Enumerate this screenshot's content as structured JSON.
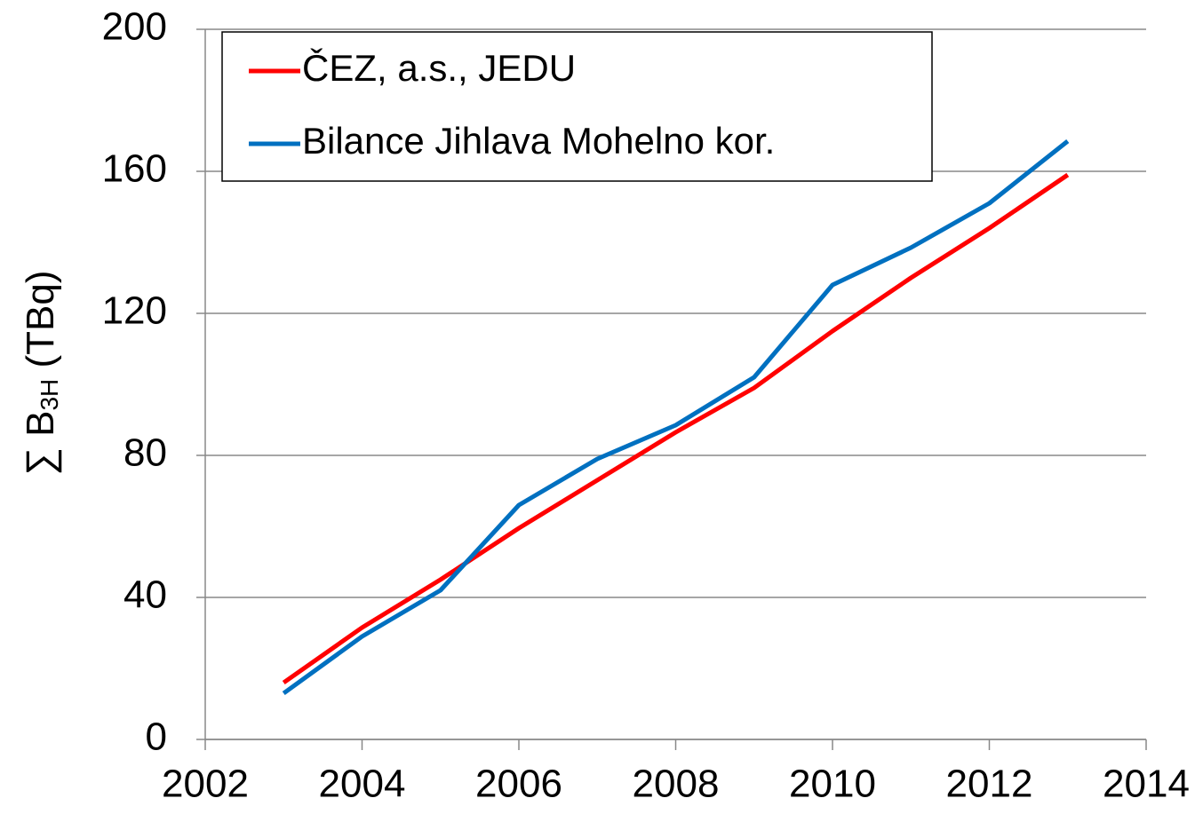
{
  "chart_data": {
    "type": "line",
    "y_label": {
      "main": "∑ B",
      "sub": "3H",
      "rest": " (TBq)"
    },
    "x": [
      2003,
      2004,
      2005,
      2006,
      2007,
      2008,
      2009,
      2010,
      2011,
      2012,
      2013
    ],
    "series": [
      {
        "name": "ČEZ, a.s., JEDU",
        "color": "#ff0000",
        "values": [
          16,
          31.5,
          45,
          59.5,
          73,
          86.5,
          99,
          115,
          130,
          144,
          159
        ]
      },
      {
        "name": "Bilance Jihlava Mohelno kor.",
        "color": "#0070c0",
        "values": [
          13,
          29,
          42,
          66,
          79,
          88.5,
          102,
          128,
          138.5,
          151,
          168.5
        ]
      }
    ],
    "xlim": [
      2002,
      2014
    ],
    "xticks": [
      2002,
      2004,
      2006,
      2008,
      2010,
      2012,
      2014
    ],
    "ylim": [
      0,
      200
    ],
    "yticks": [
      0,
      40,
      80,
      120,
      160,
      200
    ],
    "grid": true,
    "legend": "upper left"
  }
}
